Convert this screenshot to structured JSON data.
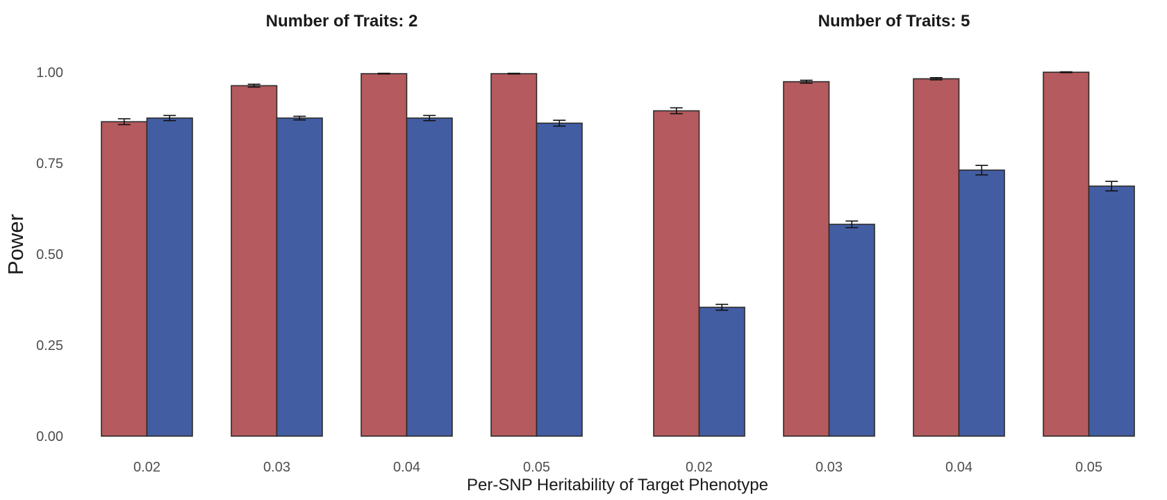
{
  "chart_data": {
    "type": "bar",
    "xlabel": "Per-SNP Heritability of Target Phenotype",
    "ylabel": "Power",
    "ylim": [
      0,
      1.0
    ],
    "yticks": [
      0.0,
      0.25,
      0.5,
      0.75,
      1.0
    ],
    "ytick_labels": [
      "0.00",
      "0.25",
      "0.50",
      "0.75",
      "1.00"
    ],
    "grid": false,
    "legend": "none",
    "colors": {
      "series1": "#b55a5e",
      "series2": "#435da3"
    },
    "panels": [
      {
        "title": "Number of Traits: 2",
        "categories": [
          "0.02",
          "0.03",
          "0.04",
          "0.05"
        ],
        "series": [
          {
            "values": [
              0.864,
              0.963,
              0.996,
              0.996
            ],
            "err": [
              0.008,
              0.004,
              0.001,
              0.001
            ]
          },
          {
            "values": [
              0.874,
              0.874,
              0.874,
              0.86
            ],
            "err": [
              0.007,
              0.005,
              0.007,
              0.008
            ]
          }
        ]
      },
      {
        "title": "Number of Traits: 5",
        "categories": [
          "0.02",
          "0.03",
          "0.04",
          "0.05"
        ],
        "series": [
          {
            "values": [
              0.894,
              0.974,
              0.982,
              1.0
            ],
            "err": [
              0.008,
              0.004,
              0.003,
              0.001
            ]
          },
          {
            "values": [
              0.354,
              0.582,
              0.731,
              0.687
            ],
            "err": [
              0.008,
              0.009,
              0.013,
              0.013
            ]
          }
        ]
      }
    ]
  }
}
